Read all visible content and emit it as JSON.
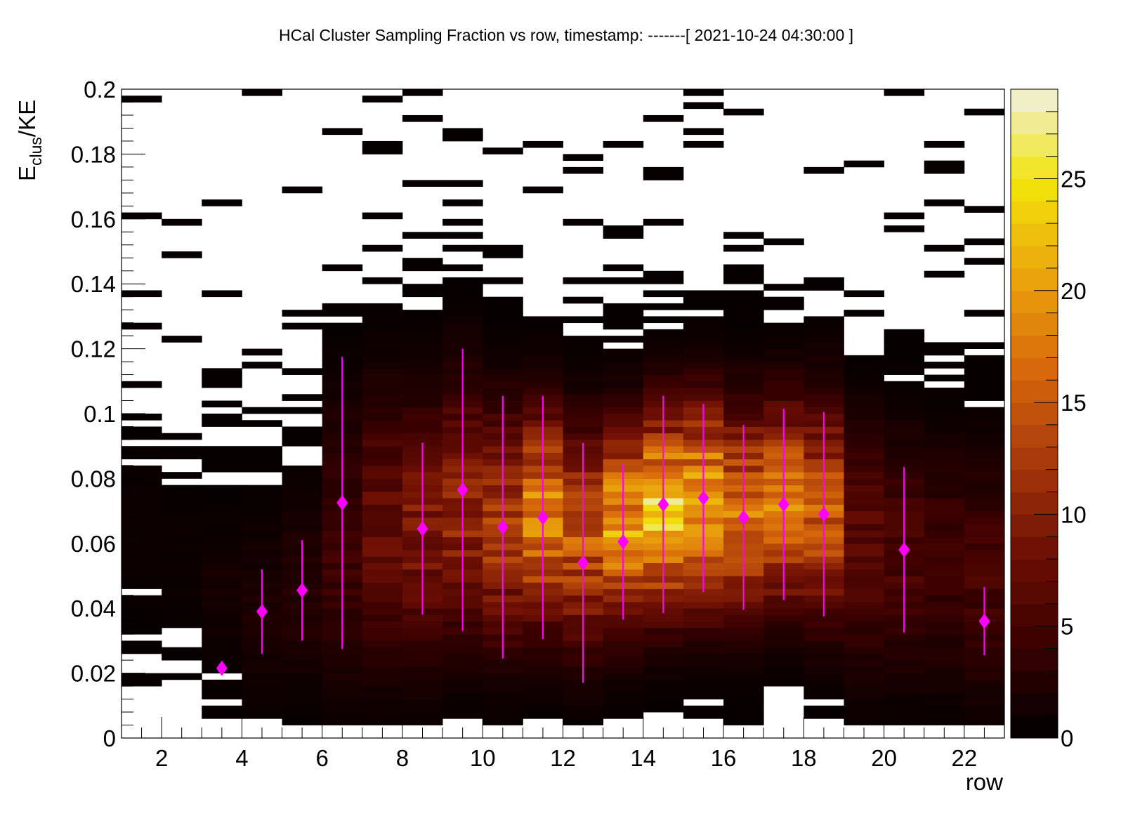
{
  "chart_data": {
    "type": "heatmap",
    "title": "HCal Cluster Sampling Fraction vs row, timestamp: -------[ 2021-10-24 04:30:00 ]",
    "xlabel": "row",
    "ylabel_main": "E",
    "ylabel_sub": "clus",
    "ylabel_tail": "/KE",
    "xlim": [
      1,
      23
    ],
    "ylim": [
      0,
      0.2
    ],
    "zlim": [
      0,
      29
    ],
    "x_ticks": [
      2,
      4,
      6,
      8,
      10,
      12,
      14,
      16,
      18,
      20,
      22
    ],
    "y_ticks": [
      0,
      0.02,
      0.04,
      0.06,
      0.08,
      0.1,
      0.12,
      0.14,
      0.16,
      0.18,
      0.2
    ],
    "y_tick_labels": [
      "0",
      "0.02",
      "0.04",
      "0.06",
      "0.08",
      "0.1",
      "0.12",
      "0.14",
      "0.16",
      "0.18",
      "0.2"
    ],
    "z_ticks": [
      0,
      5,
      10,
      15,
      20,
      25
    ],
    "z_tick_labels": [
      "0",
      "5",
      "10",
      "15",
      "20",
      "25"
    ],
    "x_bins": 22,
    "y_bins": 100,
    "y_fill_min": 0.005,
    "colormap": "dark-body",
    "colormap_stops": [
      "#000000",
      "#3a0000",
      "#6e0f04",
      "#a83a0a",
      "#d86a0c",
      "#eaa60c",
      "#f2e40a",
      "#f0f0e0"
    ],
    "marker_color": "#ff00ff",
    "row_profiles": [
      {
        "row": 1.5,
        "mean": 0.065,
        "sigma": 0.022,
        "amp": 0.6
      },
      {
        "row": 2.5,
        "mean": 0.055,
        "sigma": 0.018,
        "amp": 0.6
      },
      {
        "row": 3.5,
        "mean": 0.045,
        "sigma": 0.02,
        "amp": 1.0
      },
      {
        "row": 4.5,
        "mean": 0.04,
        "sigma": 0.02,
        "amp": 1.6
      },
      {
        "row": 5.5,
        "mean": 0.045,
        "sigma": 0.022,
        "amp": 2.2
      },
      {
        "row": 6.5,
        "mean": 0.06,
        "sigma": 0.03,
        "amp": 4.0
      },
      {
        "row": 7.5,
        "mean": 0.065,
        "sigma": 0.028,
        "amp": 7.0
      },
      {
        "row": 8.5,
        "mean": 0.065,
        "sigma": 0.026,
        "amp": 8.5
      },
      {
        "row": 9.5,
        "mean": 0.07,
        "sigma": 0.026,
        "amp": 10.0
      },
      {
        "row": 10.5,
        "mean": 0.065,
        "sigma": 0.024,
        "amp": 12.0
      },
      {
        "row": 11.5,
        "mean": 0.068,
        "sigma": 0.022,
        "amp": 17.0
      },
      {
        "row": 12.5,
        "mean": 0.062,
        "sigma": 0.022,
        "amp": 14.0
      },
      {
        "row": 13.5,
        "mean": 0.065,
        "sigma": 0.02,
        "amp": 19.0
      },
      {
        "row": 14.5,
        "mean": 0.07,
        "sigma": 0.02,
        "amp": 22.0
      },
      {
        "row": 15.5,
        "mean": 0.072,
        "sigma": 0.021,
        "amp": 20.0
      },
      {
        "row": 16.5,
        "mean": 0.07,
        "sigma": 0.021,
        "amp": 16.0
      },
      {
        "row": 17.5,
        "mean": 0.072,
        "sigma": 0.02,
        "amp": 18.0
      },
      {
        "row": 18.5,
        "mean": 0.07,
        "sigma": 0.022,
        "amp": 14.0
      },
      {
        "row": 19.5,
        "mean": 0.06,
        "sigma": 0.025,
        "amp": 6.0
      },
      {
        "row": 20.5,
        "mean": 0.058,
        "sigma": 0.025,
        "amp": 5.0
      },
      {
        "row": 21.5,
        "mean": 0.055,
        "sigma": 0.025,
        "amp": 4.0
      },
      {
        "row": 22.5,
        "mean": 0.05,
        "sigma": 0.025,
        "amp": 4.5
      }
    ],
    "profile_points": [
      {
        "x": 3.5,
        "y": 0.0215,
        "err": 0.0
      },
      {
        "x": 4.5,
        "y": 0.039,
        "err": 0.013
      },
      {
        "x": 5.5,
        "y": 0.0455,
        "err": 0.0155
      },
      {
        "x": 6.5,
        "y": 0.0725,
        "err": 0.045
      },
      {
        "x": 8.5,
        "y": 0.0645,
        "err": 0.0265
      },
      {
        "x": 9.5,
        "y": 0.0765,
        "err": 0.0435
      },
      {
        "x": 10.5,
        "y": 0.065,
        "err": 0.0405
      },
      {
        "x": 11.5,
        "y": 0.068,
        "err": 0.0375
      },
      {
        "x": 12.5,
        "y": 0.054,
        "err": 0.037
      },
      {
        "x": 13.5,
        "y": 0.0605,
        "err": 0.024
      },
      {
        "x": 14.5,
        "y": 0.072,
        "err": 0.0335
      },
      {
        "x": 15.5,
        "y": 0.074,
        "err": 0.029
      },
      {
        "x": 16.5,
        "y": 0.068,
        "err": 0.0285
      },
      {
        "x": 17.5,
        "y": 0.072,
        "err": 0.0295
      },
      {
        "x": 18.5,
        "y": 0.069,
        "err": 0.0315
      },
      {
        "x": 20.5,
        "y": 0.058,
        "err": 0.0255
      },
      {
        "x": 22.5,
        "y": 0.036,
        "err": 0.0105
      }
    ]
  }
}
